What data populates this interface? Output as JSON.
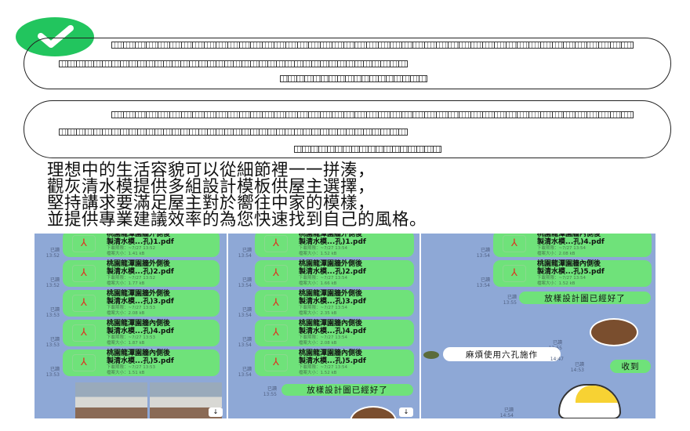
{
  "check_color": "#22c55e",
  "intro": [
    "理想中的生活容貌可以從細節裡一一拼湊，",
    "觀灰清水模提供多組設計模板供屋主選擇，",
    "堅持講求要滿足屋主對於嚮往中家的模樣，",
    "並提供專業建議效率的為您快速找到自己的風格。"
  ],
  "chat": {
    "read_label": "已讀",
    "panel1": {
      "files": [
        {
          "title1": "桃園龍潭園牆外側後",
          "title2": "製清水模...孔)1.pdf",
          "deadline": "下載期限：~7/27 13:52",
          "size": "檔案大小：1.41 kB",
          "time": "13:52"
        },
        {
          "title1": "桃園龍潭園牆外側後",
          "title2": "製清水模...孔)2.pdf",
          "deadline": "下載期限：~7/27 13:52",
          "size": "檔案大小：1.77 kB",
          "time": "13:52"
        },
        {
          "title1": "桃園龍潭園牆外側後",
          "title2": "製清水模...孔)3.pdf",
          "deadline": "下載期限：~7/27 13:53",
          "size": "檔案大小：2.08 kB",
          "time": "13:53"
        },
        {
          "title1": "桃園龍潭園牆內側後",
          "title2": "製清水模...孔)4.pdf",
          "deadline": "下載期限：~7/27 13:53",
          "size": "檔案大小：1.87 kB",
          "time": "13:53"
        },
        {
          "title1": "桃園龍潭園牆內側後",
          "title2": "製清水模...孔)5.pdf",
          "deadline": "下載期限：~7/27 13:53",
          "size": "檔案大小：1.51 kB",
          "time": "13:53"
        }
      ]
    },
    "panel2": {
      "files": [
        {
          "title1": "桃園龍潭園牆外側後",
          "title2": "製清水模...孔)1.pdf",
          "deadline": "下載期限：~7/27 13:54",
          "size": "檔案大小：1.52 kB",
          "time": "13:54"
        },
        {
          "title1": "桃園龍潭園牆外側後",
          "title2": "製清水模...孔)2.pdf",
          "deadline": "下載期限：~7/27 13:54",
          "size": "檔案大小：1.66 kB",
          "time": "13:54"
        },
        {
          "title1": "桃園龍潭園牆外側後",
          "title2": "製清水模...孔)3.pdf",
          "deadline": "下載期限：~7/27 13:54",
          "size": "檔案大小：2.35 kB",
          "time": "13:54"
        },
        {
          "title1": "桃園龍潭園牆內側後",
          "title2": "製清水模...孔)4.pdf",
          "deadline": "下載期限：~7/27 13:54",
          "size": "檔案大小：2.08 kB",
          "time": "13:54"
        },
        {
          "title1": "桃園龍潭園牆內側後",
          "title2": "製清水模...孔)5.pdf",
          "deadline": "下載期限：~7/27 13:54",
          "size": "檔案大小：1.52 kB",
          "time": "13:54"
        }
      ],
      "message": "放樣設計圖已經好了",
      "message_time": "13:55"
    },
    "panel3": {
      "files": [
        {
          "title1": "桃園龍潭園牆內側後",
          "title2": "製清水模...孔)4.pdf",
          "deadline": "下載期限：~7/27 13:54",
          "size": "檔案大小：2.08 kB",
          "time": "13:54"
        },
        {
          "title1": "桃園龍潭園牆內側後",
          "title2": "製清水模...孔)5.pdf",
          "deadline": "下載期限：~7/27 13:54",
          "size": "檔案大小：1.52 kB",
          "time": "13:54"
        }
      ],
      "message": "放樣設計圖已經好了",
      "message_time": "13:55",
      "sticker_time": "13:55",
      "incoming": "麻煩使用六孔施作",
      "incoming_time": "14:47",
      "reply": "收到",
      "reply_time": "14:53",
      "sticker2_time": "14:54"
    },
    "download_icon": "↓",
    "file_icon": "pdf-icon"
  }
}
